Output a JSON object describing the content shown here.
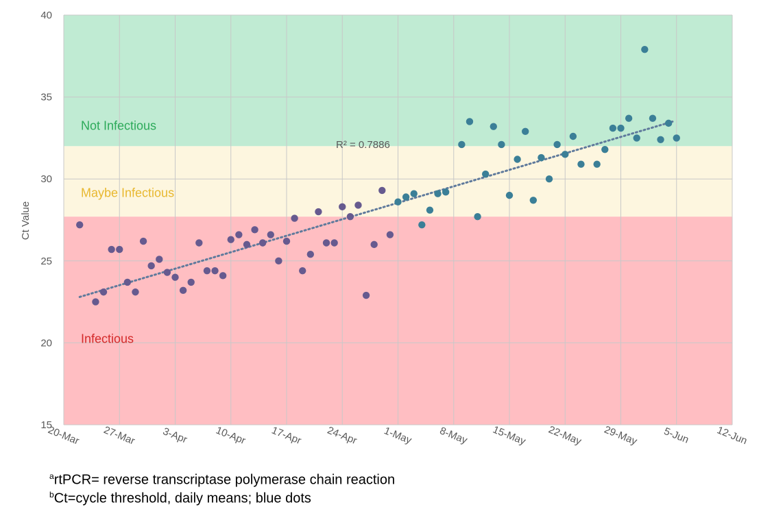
{
  "chart_data": {
    "type": "scatter",
    "ylabel": "Ct Value",
    "ylim": [
      15,
      40
    ],
    "yticks": [
      15,
      20,
      25,
      30,
      35,
      40
    ],
    "x_tick_labels": [
      "20-Mar",
      "27-Mar",
      "3-Apr",
      "10-Apr",
      "17-Apr",
      "24-Apr",
      "1-May",
      "8-May",
      "15-May",
      "22-May",
      "29-May",
      "5-Jun",
      "12-Jun"
    ],
    "x_range_days": [
      0,
      84
    ],
    "bands": [
      {
        "label": "Not Infectious",
        "from": 32,
        "to": 40,
        "color": "#c0ebd3",
        "label_color": "#2daa5a",
        "label_y": 33
      },
      {
        "label": "Maybe Infectious",
        "from": 27.7,
        "to": 32,
        "color": "#fdf6df",
        "label_color": "#e8b830",
        "label_y": 28.9
      },
      {
        "label": "Infectious",
        "from": 15,
        "to": 27.7,
        "color": "#ffbec2",
        "label_color": "#d42a2a",
        "label_y": 20
      }
    ],
    "trendline": {
      "label": "R² = 0.7886",
      "x": [
        2,
        76.5
      ],
      "y": [
        22.8,
        33.5
      ],
      "color": "#5f7a9c"
    },
    "points": [
      {
        "x": 2,
        "y": 27.2
      },
      {
        "x": 4,
        "y": 22.5
      },
      {
        "x": 5,
        "y": 23.1
      },
      {
        "x": 6,
        "y": 25.7
      },
      {
        "x": 7,
        "y": 25.7
      },
      {
        "x": 8,
        "y": 23.7
      },
      {
        "x": 9,
        "y": 23.1
      },
      {
        "x": 10,
        "y": 26.2
      },
      {
        "x": 11,
        "y": 24.7
      },
      {
        "x": 12,
        "y": 25.1
      },
      {
        "x": 13,
        "y": 24.3
      },
      {
        "x": 14,
        "y": 24.0
      },
      {
        "x": 15,
        "y": 23.2
      },
      {
        "x": 16,
        "y": 23.7
      },
      {
        "x": 17,
        "y": 26.1
      },
      {
        "x": 18,
        "y": 24.4
      },
      {
        "x": 19,
        "y": 24.4
      },
      {
        "x": 20,
        "y": 24.1
      },
      {
        "x": 21,
        "y": 26.3
      },
      {
        "x": 22,
        "y": 26.6
      },
      {
        "x": 23,
        "y": 26.0
      },
      {
        "x": 24,
        "y": 26.9
      },
      {
        "x": 25,
        "y": 26.1
      },
      {
        "x": 26,
        "y": 26.6
      },
      {
        "x": 27,
        "y": 25.0
      },
      {
        "x": 28,
        "y": 26.2
      },
      {
        "x": 29,
        "y": 27.6
      },
      {
        "x": 30,
        "y": 24.4
      },
      {
        "x": 31,
        "y": 25.4
      },
      {
        "x": 32,
        "y": 28.0
      },
      {
        "x": 33,
        "y": 26.1
      },
      {
        "x": 34,
        "y": 26.1
      },
      {
        "x": 35,
        "y": 28.3
      },
      {
        "x": 36,
        "y": 27.7
      },
      {
        "x": 37,
        "y": 28.4
      },
      {
        "x": 38,
        "y": 22.9
      },
      {
        "x": 39,
        "y": 26.0
      },
      {
        "x": 40,
        "y": 29.3
      },
      {
        "x": 41,
        "y": 26.6
      },
      {
        "x": 42,
        "y": 28.6
      },
      {
        "x": 43,
        "y": 28.9
      },
      {
        "x": 44,
        "y": 29.1
      },
      {
        "x": 45,
        "y": 27.2
      },
      {
        "x": 46,
        "y": 28.1
      },
      {
        "x": 47,
        "y": 29.1
      },
      {
        "x": 48,
        "y": 29.2
      },
      {
        "x": 50,
        "y": 32.1
      },
      {
        "x": 51,
        "y": 33.5
      },
      {
        "x": 52,
        "y": 27.7
      },
      {
        "x": 53,
        "y": 30.3
      },
      {
        "x": 54,
        "y": 33.2
      },
      {
        "x": 55,
        "y": 32.1
      },
      {
        "x": 56,
        "y": 29.0
      },
      {
        "x": 57,
        "y": 31.2
      },
      {
        "x": 58,
        "y": 32.9
      },
      {
        "x": 59,
        "y": 28.7
      },
      {
        "x": 60,
        "y": 31.3
      },
      {
        "x": 61,
        "y": 30.0
      },
      {
        "x": 62,
        "y": 32.1
      },
      {
        "x": 63,
        "y": 31.5
      },
      {
        "x": 64,
        "y": 32.6
      },
      {
        "x": 65,
        "y": 30.9
      },
      {
        "x": 67,
        "y": 30.9
      },
      {
        "x": 68,
        "y": 31.8
      },
      {
        "x": 69,
        "y": 33.1
      },
      {
        "x": 70,
        "y": 33.1
      },
      {
        "x": 71,
        "y": 33.7
      },
      {
        "x": 72,
        "y": 32.5
      },
      {
        "x": 73,
        "y": 37.9
      },
      {
        "x": 74,
        "y": 33.7
      },
      {
        "x": 75,
        "y": 32.4
      },
      {
        "x": 76,
        "y": 33.4
      },
      {
        "x": 77,
        "y": 32.5
      }
    ],
    "colors": {
      "early": "#665a8f",
      "late": "#3b7f97",
      "switch_at_x": 42
    }
  },
  "footnotes": {
    "a_marker": "a",
    "a_text": "rtPCR= reverse transcriptase polymerase chain reaction",
    "b_marker": "b",
    "b_text": "Ct=cycle threshold, daily means; blue dots"
  }
}
